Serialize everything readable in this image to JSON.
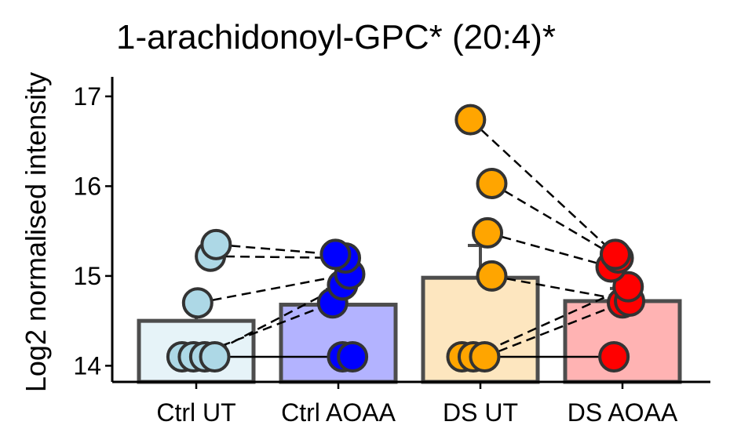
{
  "chart_data": {
    "type": "bar",
    "title": "1-arachidonoyl-GPC* (20:4)*",
    "ylabel": "Log2 normalised intensity",
    "xlabel": "",
    "ylim": [
      13.82,
      17.2
    ],
    "yticks": [
      14,
      15,
      16,
      17
    ],
    "grid": false,
    "legend": "none",
    "categories": [
      "Ctrl UT",
      "Ctrl AOAA",
      "DS UT",
      "DS AOAA"
    ],
    "means": [
      14.5,
      14.68,
      14.98,
      14.72
    ],
    "errors": [
      0.18,
      0.17,
      0.36,
      0.14
    ],
    "bar_fills": [
      "#e6f3f8",
      "#b3b3ff",
      "#fde6bf",
      "#ffb3b3"
    ],
    "point_fills": [
      "#add8e6",
      "#0000ff",
      "#ffa500",
      "#ff0000"
    ],
    "bar_outline": "#4d4d4d",
    "points": [
      [
        {
          "y": 14.1,
          "jitter": -0.1
        },
        {
          "y": 14.1,
          "jitter": -0.02
        },
        {
          "y": 14.1,
          "jitter": 0.06
        },
        {
          "y": 14.1,
          "jitter": 0.13
        },
        {
          "y": 14.7,
          "jitter": 0.01
        },
        {
          "y": 15.22,
          "jitter": 0.1
        },
        {
          "y": 15.35,
          "jitter": 0.14
        }
      ],
      [
        {
          "y": 14.1,
          "jitter": 0.03
        },
        {
          "y": 14.1,
          "jitter": 0.1
        },
        {
          "y": 14.7,
          "jitter": -0.04
        },
        {
          "y": 14.9,
          "jitter": 0.03
        },
        {
          "y": 15.02,
          "jitter": 0.08
        },
        {
          "y": 15.2,
          "jitter": 0.05
        },
        {
          "y": 15.24,
          "jitter": -0.02
        }
      ],
      [
        {
          "y": 14.1,
          "jitter": -0.13
        },
        {
          "y": 14.1,
          "jitter": -0.05
        },
        {
          "y": 14.1,
          "jitter": 0.03
        },
        {
          "y": 15.0,
          "jitter": 0.08
        },
        {
          "y": 15.48,
          "jitter": 0.05
        },
        {
          "y": 16.03,
          "jitter": 0.08
        },
        {
          "y": 16.74,
          "jitter": -0.07
        }
      ],
      [
        {
          "y": 14.1,
          "jitter": -0.06
        },
        {
          "y": 14.7,
          "jitter": 0.0
        },
        {
          "y": 14.72,
          "jitter": 0.05
        },
        {
          "y": 14.88,
          "jitter": 0.04
        },
        {
          "y": 15.1,
          "jitter": -0.08
        },
        {
          "y": 15.2,
          "jitter": -0.03
        },
        {
          "y": 15.24,
          "jitter": -0.05
        }
      ]
    ],
    "pairs": [
      {
        "from": [
          0,
          0
        ],
        "to": [
          1,
          0
        ],
        "style": "solid"
      },
      {
        "from": [
          0,
          1
        ],
        "to": [
          1,
          2
        ],
        "style": "dashed"
      },
      {
        "from": [
          0,
          2
        ],
        "to": [
          1,
          3
        ],
        "style": "dashed"
      },
      {
        "from": [
          0,
          4
        ],
        "to": [
          1,
          4
        ],
        "style": "dashed"
      },
      {
        "from": [
          0,
          5
        ],
        "to": [
          1,
          5
        ],
        "style": "dashed"
      },
      {
        "from": [
          0,
          6
        ],
        "to": [
          1,
          6
        ],
        "style": "dashed"
      },
      {
        "from": [
          2,
          0
        ],
        "to": [
          3,
          0
        ],
        "style": "solid"
      },
      {
        "from": [
          2,
          1
        ],
        "to": [
          3,
          3
        ],
        "style": "dashed"
      },
      {
        "from": [
          2,
          2
        ],
        "to": [
          3,
          1
        ],
        "style": "dashed"
      },
      {
        "from": [
          2,
          3
        ],
        "to": [
          3,
          2
        ],
        "style": "dashed"
      },
      {
        "from": [
          2,
          4
        ],
        "to": [
          3,
          4
        ],
        "style": "dashed"
      },
      {
        "from": [
          2,
          5
        ],
        "to": [
          3,
          5
        ],
        "style": "dashed"
      },
      {
        "from": [
          2,
          6
        ],
        "to": [
          3,
          6
        ],
        "style": "dashed"
      }
    ]
  }
}
